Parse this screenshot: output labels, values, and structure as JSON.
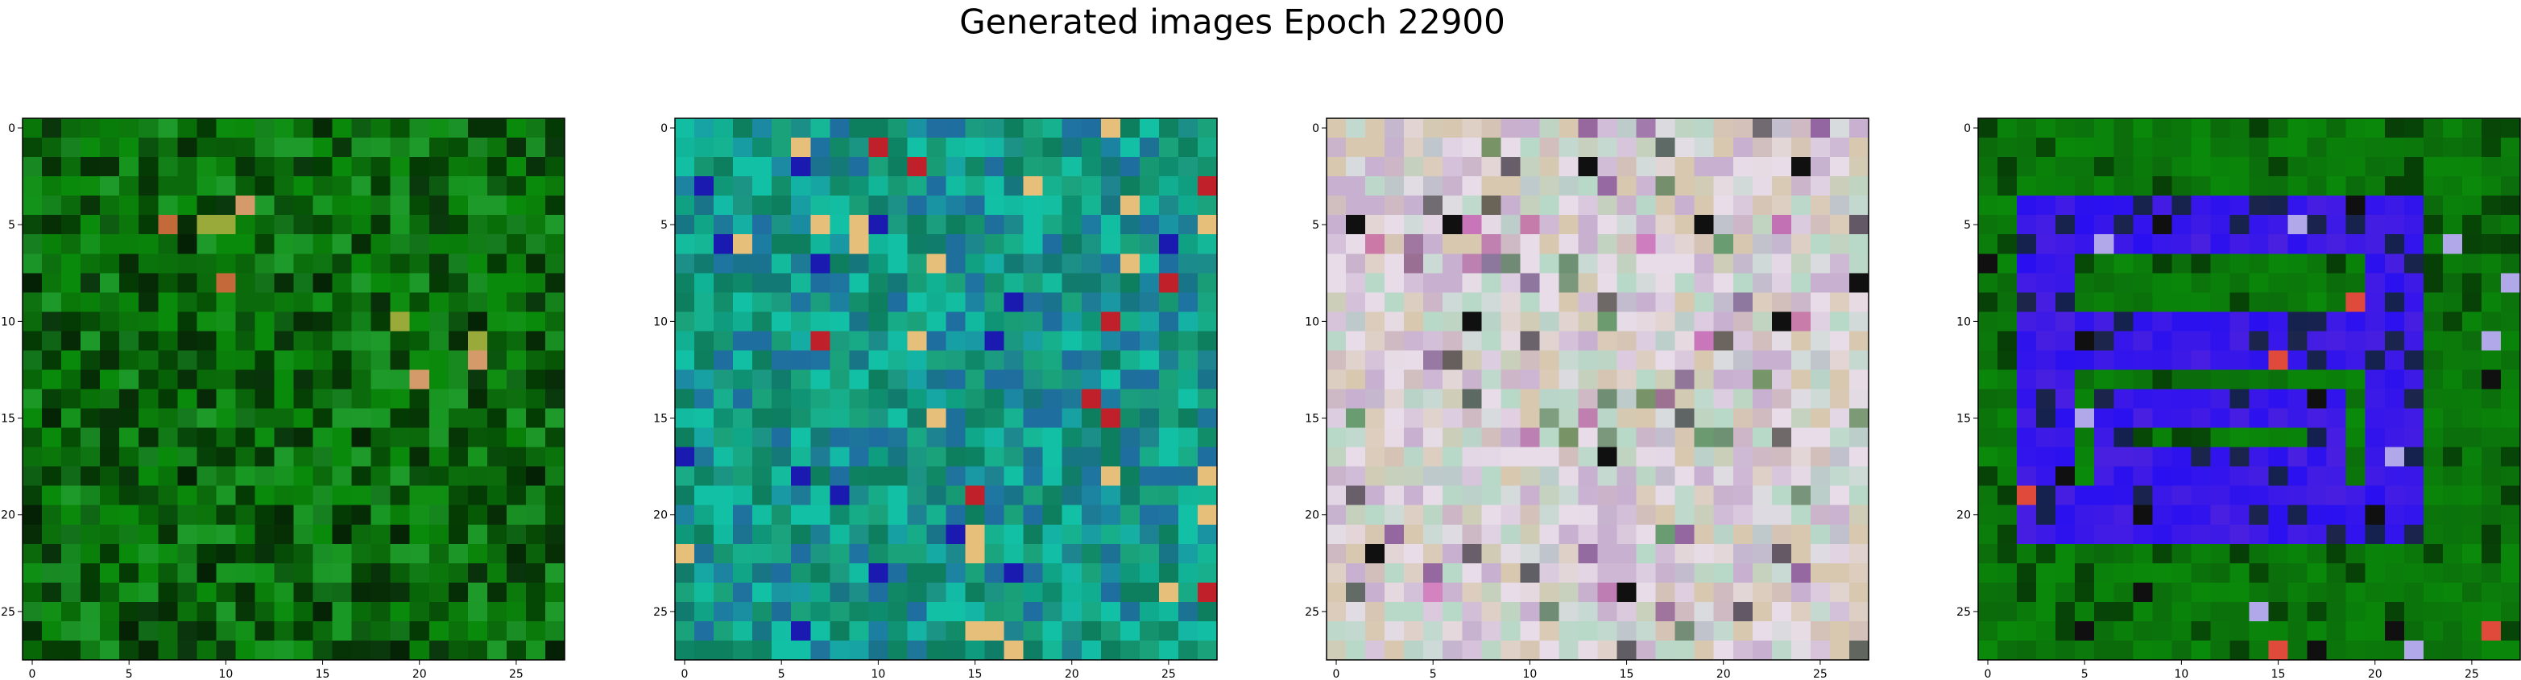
{
  "figure": {
    "suptitle": "Generated images Epoch 22900"
  },
  "chart_data": [
    {
      "type": "heatmap",
      "panel": 1,
      "grid_size": [
        28,
        28
      ],
      "xlim": [
        -0.5,
        27.5
      ],
      "ylim": [
        27.5,
        -0.5
      ],
      "x_ticks": [
        0,
        5,
        10,
        15,
        20,
        25
      ],
      "y_ticks": [
        0,
        5,
        10,
        15,
        20,
        25
      ],
      "dominant_colors": [
        "#0a8a0a",
        "#0b6a0b",
        "#043a04",
        "#1d9a2a"
      ],
      "accent_colors": [
        "#d49a6a",
        "#c46a3a",
        "#9aaa3a"
      ]
    },
    {
      "type": "heatmap",
      "panel": 2,
      "grid_size": [
        28,
        28
      ],
      "xlim": [
        -0.5,
        27.5
      ],
      "ylim": [
        27.5,
        -0.5
      ],
      "x_ticks": [
        0,
        5,
        10,
        15,
        20,
        25
      ],
      "y_ticks": [
        0,
        5,
        10,
        15,
        20,
        25
      ],
      "dominant_colors": [
        "#1aa27a",
        "#12c1a5",
        "#1f6ea0",
        "#0d7f5f"
      ],
      "accent_colors": [
        "#1a1ab0",
        "#c0202a",
        "#e6c07a"
      ]
    },
    {
      "type": "heatmap",
      "panel": 3,
      "grid_size": [
        28,
        28
      ],
      "xlim": [
        -0.5,
        27.5
      ],
      "ylim": [
        27.5,
        -0.5
      ],
      "x_ticks": [
        0,
        5,
        10,
        15,
        20,
        25
      ],
      "y_ticks": [
        0,
        5,
        10,
        15,
        20,
        25
      ],
      "dominant_colors": [
        "#e8dce8",
        "#c8b0d0",
        "#b8d8c8",
        "#d8c8b0"
      ],
      "accent_colors": [
        "#6a2a7a",
        "#2a6a2a",
        "#c03aa0",
        "#101010"
      ]
    },
    {
      "type": "heatmap",
      "panel": 4,
      "grid_size": [
        28,
        28
      ],
      "xlim": [
        -0.5,
        27.5
      ],
      "ylim": [
        27.5,
        -0.5
      ],
      "x_ticks": [
        0,
        5,
        10,
        15,
        20,
        25
      ],
      "y_ticks": [
        0,
        5,
        10,
        15,
        20,
        25
      ],
      "dominant_colors": [
        "#0a8a0a",
        "#0b6a0b",
        "#2a10f0",
        "#4a20e0"
      ],
      "accent_colors": [
        "#b0a8e8",
        "#e04a3a",
        "#101010"
      ]
    }
  ]
}
